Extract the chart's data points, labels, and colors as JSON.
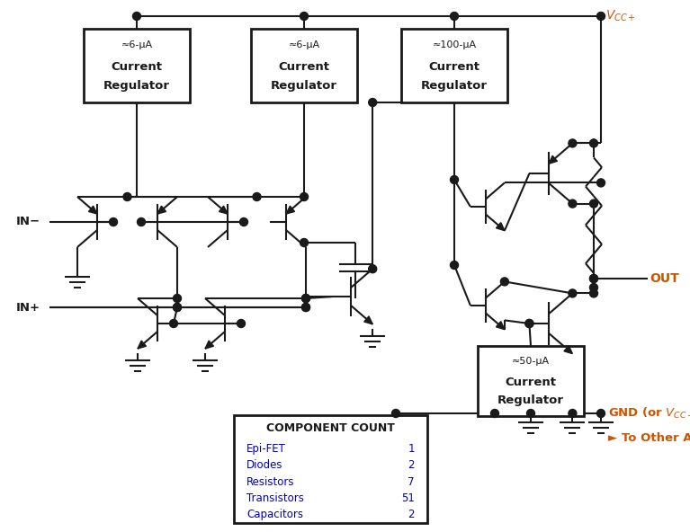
{
  "bg_color": "#ffffff",
  "lc": "#1a1a1a",
  "orange": "#cc5500",
  "blue": "#0000bb",
  "table_header": "COMPONENT COUNT",
  "table_rows": [
    [
      "Epi-FET",
      "1"
    ],
    [
      "Diodes",
      "2"
    ],
    [
      "Resistors",
      "7"
    ],
    [
      "Transistors",
      "51"
    ],
    [
      "Capacitors",
      "2"
    ]
  ],
  "reg1_top": "≈6-μA",
  "reg2_top": "≈6-μA",
  "reg3_top": "≈100-μA",
  "reg4_top": "≈50-μA",
  "reg_mid": "Current",
  "reg_bot": "Regulator",
  "vcc_label": "$V_{CC+}$",
  "out_label": "OUT",
  "gnd_label": "GND (or $V_{CC-}$)",
  "to_other": "► To Other Amplifier",
  "in_minus": "IN−",
  "in_plus": "IN+"
}
